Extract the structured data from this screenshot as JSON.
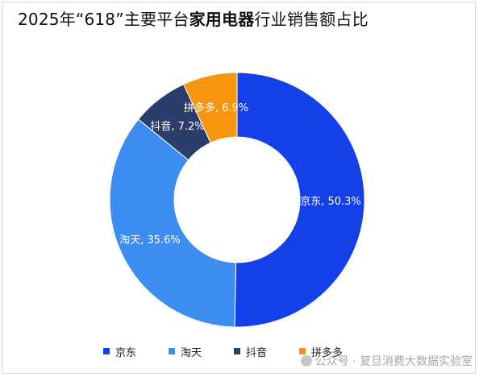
{
  "title": {
    "prefix": "2025年“618”主要平台",
    "bold": "家用电器",
    "suffix": "行业销售额占比"
  },
  "chart_data": {
    "type": "pie",
    "donut": true,
    "start_angle_deg": 0,
    "direction": "clockwise",
    "categories": [
      "京东",
      "淘天",
      "抖音",
      "拼多多"
    ],
    "values": [
      50.3,
      35.6,
      7.2,
      6.9
    ],
    "unit": "%",
    "labels": [
      "京东, 50.3%",
      "淘天, 35.6%",
      "抖音, 7.2%",
      "拼多多, 6.9%"
    ],
    "colors": [
      "#1440ea",
      "#3d8df0",
      "#2b3d6b",
      "#f6960f"
    ],
    "legend_position": "bottom"
  },
  "watermark": {
    "text": "公众号 · 复旦消费大数据实验室"
  }
}
